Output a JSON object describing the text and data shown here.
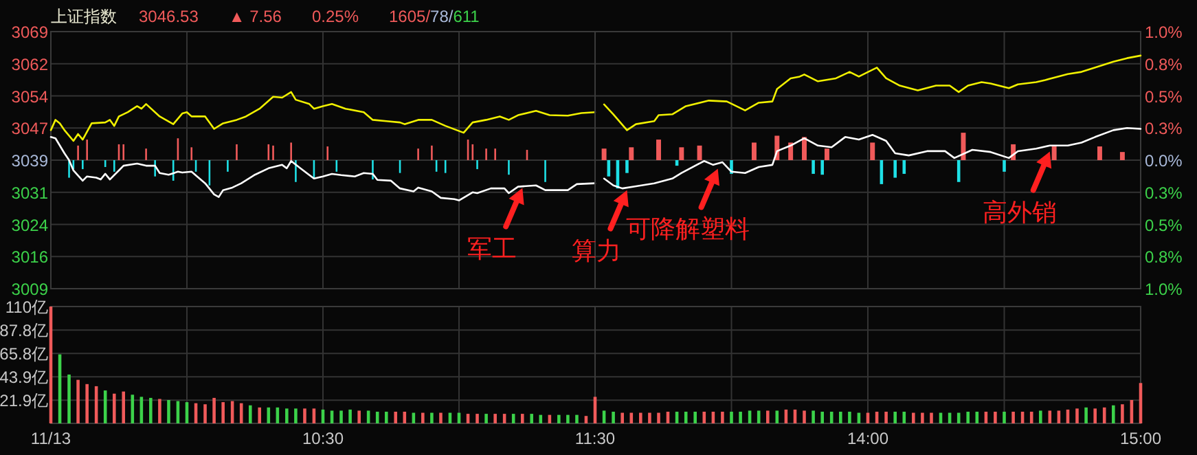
{
  "chart_data": [
    {
      "type": "line",
      "title": "上证指数",
      "annotations": [
        "3046.53",
        "▲ 7.56",
        "0.25%",
        "1605/78/611",
        {
          "text": "军工",
          "x": 11.233,
          "y": 3032.5
        }
      ],
      "xlim": [
        9.5,
        11.5
      ],
      "xticks": [
        {
          "value": 9.5,
          "label": null
        },
        {
          "value": 10,
          "label": null
        },
        {
          "value": 10.5,
          "label": null
        },
        {
          "value": 11,
          "label": null
        },
        {
          "value": 11.5,
          "label": null
        }
      ],
      "ylim": [
        3009,
        3069
      ],
      "yticks": [
        3009,
        {
          "value": 3016.5,
          "label": "3016"
        },
        3024,
        {
          "value": 3031.5,
          "label": "3031"
        },
        3039,
        {
          "value": 3046.5,
          "label": "3047"
        },
        3054,
        {
          "value": 3061.5,
          "label": "3062"
        },
        3069
      ],
      "grid": true,
      "tick_labels": "y",
      "series": [
        {
          "type": "bar",
          "color": "#f05a5a",
          "x": [
            9.6,
            9.633,
            9.75,
            9.767,
            9.85,
            9.967,
            10.017,
            10.183,
            10.3,
            10.317,
            10.383,
            10.517,
            10.85,
            10.9,
            11.033,
            11.05,
            11.1,
            11.133,
            11.25
          ],
          "base": [
            3039,
            3039,
            3039,
            3039,
            3039,
            3039,
            3039,
            3039,
            3039,
            3039,
            3039,
            3039,
            3039,
            3039,
            3039,
            3039,
            3039,
            3039,
            3039
          ],
          "values": [
            3.4,
            4.8,
            3.7,
            3.7,
            2.7,
            5.1,
            3.0,
            3.7,
            3.7,
            3.4,
            4.1,
            3.2,
            2.7,
            3.4,
            4.8,
            3.7,
            2.7,
            2.7,
            2.4
          ]
        },
        {
          "type": "bar",
          "color": "#1ee0e6",
          "x": [
            9.567,
            9.583,
            9.617,
            9.7,
            9.733,
            9.883,
            9.95,
            10.033,
            10.083,
            10.15,
            10.4,
            10.467,
            10.55,
            10.683,
            10.783,
            10.917,
            10.95,
            11.067,
            11.183,
            11.317
          ],
          "base": [
            3039,
            3039,
            3039,
            3039,
            3039,
            3039,
            3039,
            3039,
            3039,
            3039,
            3039,
            3039,
            3039,
            3039,
            3039,
            3039,
            3039,
            3039,
            3039,
            3039
          ],
          "values": [
            -4.1,
            -2.1,
            -2.1,
            -1.6,
            -2.7,
            -3.8,
            -4.8,
            -2.7,
            -5.9,
            -2.7,
            -5.1,
            -4.3,
            -2.7,
            -4.5,
            -3.0,
            -2.7,
            -3.0,
            -2.1,
            -3.4,
            -5.1
          ]
        },
        {
          "color": "#f0f000",
          "x": [
            9.5,
            9.517,
            9.533,
            9.55,
            9.583,
            9.6,
            9.617,
            9.65,
            9.7,
            9.717,
            9.733,
            9.75,
            9.783,
            9.817,
            9.833,
            9.85,
            9.9,
            9.95,
            9.983,
            10,
            10.017,
            10.067,
            10.1,
            10.133,
            10.183,
            10.217,
            10.267,
            10.317,
            10.35,
            10.383,
            10.4,
            10.45,
            10.467,
            10.5,
            10.533,
            10.583,
            10.65,
            10.683,
            10.733,
            10.783,
            10.8,
            10.85,
            10.9,
            10.95,
            11.017,
            11.05,
            11.1,
            11.15,
            11.183,
            11.217,
            11.283,
            11.333,
            11.4,
            11.45,
            11.5
          ],
          "values": [
            3046.0,
            3048.4,
            3047.6,
            3046.0,
            3043.5,
            3045.1,
            3043.8,
            3047.6,
            3047.8,
            3048.4,
            3047.0,
            3049.2,
            3050.2,
            3051.6,
            3051.0,
            3052.1,
            3049.2,
            3047.4,
            3049.9,
            3050.2,
            3049.2,
            3049.2,
            3046.3,
            3047.6,
            3048.4,
            3049.2,
            3051.0,
            3053.8,
            3053.6,
            3054.9,
            3053.1,
            3052.1,
            3051.0,
            3051.6,
            3052.1,
            3051.0,
            3050.2,
            3048.4,
            3048.1,
            3047.8,
            3047.4,
            3048.4,
            3048.4,
            3047.0,
            3045.4,
            3047.8,
            3048.4,
            3049.2,
            3048.4,
            3049.5,
            3050.5,
            3049.5,
            3049.4,
            3050.0,
            3050.2
          ]
        },
        {
          "color": "#ffffff",
          "x": [
            9.5,
            9.517,
            9.55,
            9.567,
            9.583,
            9.617,
            9.633,
            9.667,
            9.683,
            9.7,
            9.717,
            9.75,
            9.767,
            9.817,
            9.85,
            9.883,
            9.9,
            9.933,
            9.967,
            9.983,
            10.017,
            10.05,
            10.067,
            10.1,
            10.117,
            10.133,
            10.167,
            10.2,
            10.25,
            10.3,
            10.35,
            10.367,
            10.383,
            10.417,
            10.467,
            10.5,
            10.533,
            10.567,
            10.617,
            10.65,
            10.683,
            10.7,
            10.75,
            10.783,
            10.833,
            10.85,
            10.9,
            10.933,
            10.983,
            11,
            11.05,
            11.067,
            11.117,
            11.167,
            11.183,
            11.217,
            11.283,
            11.317,
            11.4,
            11.433,
            11.5
          ],
          "values": [
            3044.4,
            3044.1,
            3040.6,
            3039.0,
            3036.6,
            3034.2,
            3035.2,
            3034.9,
            3034.5,
            3035.8,
            3034.5,
            3036.6,
            3037.7,
            3038.2,
            3037.7,
            3037.7,
            3036.0,
            3035.6,
            3036.3,
            3036.1,
            3036.3,
            3034.5,
            3033.6,
            3031.0,
            3030.4,
            3032.0,
            3032.6,
            3033.6,
            3035.6,
            3037.1,
            3037.9,
            3037.1,
            3038.8,
            3037.1,
            3034.7,
            3035.2,
            3035.8,
            3035.5,
            3035.2,
            3036.0,
            3035.8,
            3034.4,
            3034.2,
            3032.4,
            3031.7,
            3032.6,
            3031.7,
            3030.2,
            3029.9,
            3029.6,
            3031.5,
            3031.3,
            3032.4,
            3032.4,
            3031.3,
            3032.8,
            3033.1,
            3032.0,
            3032.0,
            3033.4,
            3033.6
          ]
        }
      ]
    },
    {
      "type": "line",
      "annotations": [
        {
          "text": "算力",
          "x": 13.117,
          "y": 3032
        },
        {
          "text": "可降解塑料",
          "x": 13.45,
          "y": 3037
        },
        {
          "text": "高外销",
          "x": 14.667,
          "y": 3041
        }
      ],
      "xlim": [
        13,
        15
      ],
      "xticks": [
        {
          "value": 13,
          "label": null
        },
        {
          "value": 13.5,
          "label": null
        },
        {
          "value": 14,
          "label": null
        },
        {
          "value": 14.5,
          "label": null
        },
        {
          "value": 15,
          "label": null
        }
      ],
      "ylim": [
        3009,
        3069
      ],
      "y2lim": [
        -1,
        1
      ],
      "y2ticks": [
        {
          "value": -1,
          "label": "1.0%"
        },
        {
          "value": -0.75,
          "label": "0.8%"
        },
        {
          "value": -0.5,
          "label": "0.5%"
        },
        {
          "value": -0.25,
          "label": "0.3%"
        },
        {
          "value": 0,
          "label": "0.0%"
        },
        {
          "value": 0.25,
          "label": "0.3%"
        },
        {
          "value": 0.5,
          "label": "0.5%"
        },
        {
          "value": 0.75,
          "label": "0.8%"
        },
        {
          "value": 1,
          "label": "1.0%"
        }
      ],
      "grid": true,
      "tick_labels": "y",
      "series": [
        {
          "type": "bar",
          "color": "#f05a5a",
          "x": [
            13.033,
            13.133,
            13.233,
            13.317,
            13.383,
            13.583,
            13.667,
            13.717,
            13.767,
            13.85,
            14.017,
            14.35,
            14.533,
            14.683,
            14.85,
            14.933
          ],
          "base": [
            3039,
            3039,
            3039,
            3039,
            3039,
            3039,
            3039,
            3039,
            3039,
            3039,
            3039,
            3039,
            3039,
            3039,
            3039,
            3039
          ],
          "values": [
            2.7,
            3.0,
            4.8,
            3.0,
            3.4,
            4.1,
            5.7,
            4.1,
            5.4,
            2.7,
            4.1,
            6.4,
            3.7,
            3.2,
            3.2,
            1.9
          ]
        },
        {
          "type": "bar",
          "color": "#1ee0e6",
          "x": [
            13.05,
            13.083,
            13.117,
            13.3,
            13.5,
            13.8,
            13.833,
            14.05,
            14.1,
            14.133,
            14.333,
            14.5
          ],
          "base": [
            3039,
            3039,
            3039,
            3039,
            3039,
            3039,
            3039,
            3039,
            3039,
            3039,
            3039,
            3039
          ],
          "values": [
            -3.8,
            -6.6,
            -3.0,
            -1.3,
            -3.2,
            -3.2,
            -3.4,
            -5.6,
            -4.1,
            -3.2,
            -5.1,
            -2.7
          ]
        },
        {
          "color": "#f0f000",
          "x": [
            13.033,
            13.067,
            13.117,
            13.15,
            13.217,
            13.233,
            13.283,
            13.333,
            13.417,
            13.483,
            13.55,
            13.6,
            13.65,
            13.667,
            13.717,
            13.75,
            13.767,
            13.817,
            13.883,
            13.933,
            13.967,
            14.033,
            14.067,
            14.117,
            14.183,
            14.25,
            14.3,
            14.333,
            14.367,
            14.417,
            14.45,
            14.517,
            14.55,
            14.617,
            14.65,
            14.733,
            14.783,
            14.833,
            14.9,
            14.95,
            15
          ],
          "values": [
            3052.0,
            3049.7,
            3046.0,
            3047.4,
            3048.1,
            3049.5,
            3049.7,
            3051.6,
            3052.9,
            3052.7,
            3050.6,
            3052.4,
            3052.7,
            3055.6,
            3058.1,
            3058.5,
            3059.0,
            3057.4,
            3058.1,
            3059.6,
            3058.5,
            3060.6,
            3058.1,
            3056.4,
            3055.3,
            3056.4,
            3056.4,
            3054.9,
            3056.4,
            3057.2,
            3056.9,
            3055.8,
            3056.7,
            3057.2,
            3057.7,
            3059.1,
            3059.6,
            3060.6,
            3062.0,
            3062.8,
            3063.4
          ]
        },
        {
          "color": "#ffffff",
          "x": [
            13.033,
            13.067,
            13.1,
            13.15,
            13.217,
            13.283,
            13.317,
            13.4,
            13.433,
            13.467,
            13.5,
            13.55,
            13.6,
            13.65,
            13.667,
            13.717,
            13.767,
            13.817,
            13.867,
            13.917,
            13.967,
            14.017,
            14.067,
            14.1,
            14.15,
            14.217,
            14.283,
            14.317,
            14.383,
            14.45,
            14.517,
            14.55,
            14.617,
            14.667,
            14.733,
            14.783,
            14.833,
            14.9,
            14.95,
            15
          ],
          "values": [
            3034.7,
            3033.1,
            3032.4,
            3032.9,
            3033.6,
            3034.7,
            3036.0,
            3038.8,
            3037.9,
            3038.5,
            3036.3,
            3036.0,
            3037.4,
            3037.9,
            3041.1,
            3042.4,
            3044.1,
            3042.4,
            3042.0,
            3044.4,
            3043.8,
            3044.9,
            3043.5,
            3040.6,
            3040.1,
            3041.1,
            3041.1,
            3039.5,
            3041.4,
            3040.9,
            3039.5,
            3041.1,
            3041.7,
            3042.4,
            3042.4,
            3043.1,
            3044.4,
            3046.0,
            3046.5,
            3046.3
          ]
        }
      ]
    },
    {
      "type": "bar",
      "xlim": [
        9.5,
        11.5
      ],
      "xticks": [
        {
          "value": 9.5,
          "label": "11/13"
        },
        {
          "value": 10,
          "label": null
        },
        {
          "value": 10.5,
          "label": "10:30"
        },
        {
          "value": 11,
          "label": null
        },
        {
          "value": 11.5,
          "label": "11:30"
        }
      ],
      "ylim": [
        0,
        110
      ],
      "yticks": [
        {
          "value": 21.9,
          "label": "21.9亿"
        },
        {
          "value": 43.9,
          "label": "43.9亿"
        },
        {
          "value": 65.8,
          "label": "65.8亿"
        },
        {
          "value": 87.8,
          "label": "87.8亿"
        },
        {
          "value": 110,
          "label": "110亿"
        }
      ],
      "grid": true,
      "x": [
        9.5,
        9.533,
        9.567,
        9.6,
        9.633,
        9.667,
        9.7,
        9.733,
        9.767,
        9.8,
        9.833,
        9.867,
        9.9,
        9.933,
        9.967,
        10,
        10.033,
        10.067,
        10.1,
        10.133,
        10.167,
        10.2,
        10.233,
        10.267,
        10.3,
        10.333,
        10.367,
        10.4,
        10.433,
        10.467,
        10.5,
        10.533,
        10.567,
        10.6,
        10.633,
        10.667,
        10.7,
        10.733,
        10.767,
        10.8,
        10.833,
        10.867,
        10.9,
        10.933,
        10.967,
        11,
        11.033,
        11.067,
        11.1,
        11.133,
        11.167,
        11.2,
        11.233,
        11.267,
        11.3,
        11.333,
        11.367,
        11.4,
        11.433,
        11.467
      ],
      "values": [
        110,
        65,
        46,
        41,
        37,
        35,
        31,
        28,
        30,
        27,
        25,
        24,
        23,
        22,
        21,
        20,
        19,
        18,
        24,
        20,
        21,
        19,
        17,
        15,
        15,
        15,
        14,
        14,
        14,
        14,
        13,
        12,
        12,
        13,
        12,
        12,
        11,
        11,
        11,
        11,
        10,
        10,
        10,
        10,
        10,
        10,
        9,
        9,
        9,
        9,
        9,
        9,
        9,
        9,
        8,
        8,
        8,
        8,
        8,
        7
      ],
      "colors": [
        "#f05a5a",
        "#3cd24a",
        "#3cd24a",
        "#f05a5a",
        "#f05a5a",
        "#f05a5a",
        "#3cd24a",
        "#f05a5a",
        "#f05a5a",
        "#3cd24a",
        "#3cd24a",
        "#3cd24a",
        "#f05a5a",
        "#3cd24a",
        "#3cd24a",
        "#3cd24a",
        "#f05a5a",
        "#f05a5a",
        "#f05a5a",
        "#f05a5a",
        "#f05a5a",
        "#f05a5a",
        "#3cd24a",
        "#f05a5a",
        "#3cd24a",
        "#3cd24a",
        "#3cd24a",
        "#3cd24a",
        "#f05a5a",
        "#f05a5a",
        "#3cd24a",
        "#3cd24a",
        "#3cd24a",
        "#3cd24a",
        "#f05a5a",
        "#3cd24a",
        "#3cd24a",
        "#3cd24a",
        "#f05a5a",
        "#f05a5a",
        "#3cd24a",
        "#f05a5a",
        "#3cd24a",
        "#f05a5a",
        "#3cd24a",
        "#3cd24a",
        "#f05a5a",
        "#f05a5a",
        "#3cd24a",
        "#f05a5a",
        "#f05a5a",
        "#3cd24a",
        "#f05a5a",
        "#3cd24a",
        "#3cd24a",
        "#f05a5a",
        "#3cd24a",
        "#3cd24a",
        "#3cd24a",
        "#f05a5a"
      ]
    },
    {
      "type": "bar",
      "xlim": [
        13,
        15
      ],
      "xticks": [
        {
          "value": 13,
          "label": null
        },
        {
          "value": 13.5,
          "label": null
        },
        {
          "value": 14,
          "label": "14:00"
        },
        {
          "value": 14.5,
          "label": null
        },
        {
          "value": 15,
          "label": "15:00"
        }
      ],
      "ylim": [
        0,
        110
      ],
      "yticks": [
        21.9,
        43.9,
        65.8,
        87.8,
        110
      ],
      "grid": true,
      "tick_labels": "x",
      "x": [
        13,
        13.033,
        13.067,
        13.1,
        13.133,
        13.167,
        13.2,
        13.233,
        13.267,
        13.3,
        13.333,
        13.367,
        13.4,
        13.433,
        13.467,
        13.5,
        13.533,
        13.567,
        13.6,
        13.633,
        13.667,
        13.7,
        13.733,
        13.767,
        13.8,
        13.833,
        13.867,
        13.9,
        13.933,
        13.967,
        14,
        14.033,
        14.067,
        14.1,
        14.133,
        14.167,
        14.2,
        14.233,
        14.267,
        14.3,
        14.333,
        14.367,
        14.4,
        14.433,
        14.467,
        14.5,
        14.533,
        14.567,
        14.6,
        14.633,
        14.667,
        14.7,
        14.733,
        14.767,
        14.8,
        14.833,
        14.867,
        14.9,
        14.933,
        14.967,
        15
      ],
      "values": [
        25,
        12,
        11,
        10,
        10,
        10,
        10,
        10,
        11,
        11,
        11,
        11,
        11,
        11,
        11,
        11,
        11,
        12,
        12,
        12,
        12,
        13,
        13,
        12,
        12,
        11,
        11,
        11,
        11,
        10,
        10,
        11,
        11,
        11,
        11,
        10,
        10,
        10,
        10,
        10,
        10,
        11,
        11,
        11,
        11,
        11,
        11,
        11,
        11,
        12,
        12,
        12,
        13,
        14,
        15,
        14,
        15,
        17,
        18,
        22,
        38
      ],
      "colors": [
        "#f05a5a",
        "#3cd24a",
        "#3cd24a",
        "#f05a5a",
        "#f05a5a",
        "#f05a5a",
        "#f05a5a",
        "#f05a5a",
        "#f05a5a",
        "#3cd24a",
        "#3cd24a",
        "#3cd24a",
        "#f05a5a",
        "#f05a5a",
        "#f05a5a",
        "#3cd24a",
        "#3cd24a",
        "#3cd24a",
        "#3cd24a",
        "#f05a5a",
        "#3cd24a",
        "#f05a5a",
        "#f05a5a",
        "#f05a5a",
        "#3cd24a",
        "#3cd24a",
        "#3cd24a",
        "#3cd24a",
        "#3cd24a",
        "#3cd24a",
        "#f05a5a",
        "#f05a5a",
        "#f05a5a",
        "#3cd24a",
        "#3cd24a",
        "#f05a5a",
        "#f05a5a",
        "#f05a5a",
        "#3cd24a",
        "#3cd24a",
        "#3cd24a",
        "#3cd24a",
        "#3cd24a",
        "#f05a5a",
        "#f05a5a",
        "#3cd24a",
        "#f05a5a",
        "#f05a5a",
        "#f05a5a",
        "#3cd24a",
        "#f05a5a",
        "#f05a5a",
        "#f05a5a",
        "#f05a5a",
        "#3cd24a",
        "#f05a5a",
        "#f05a5a",
        "#3cd24a",
        "#f05a5a",
        "#f05a5a",
        "#f05a5a"
      ]
    }
  ]
}
